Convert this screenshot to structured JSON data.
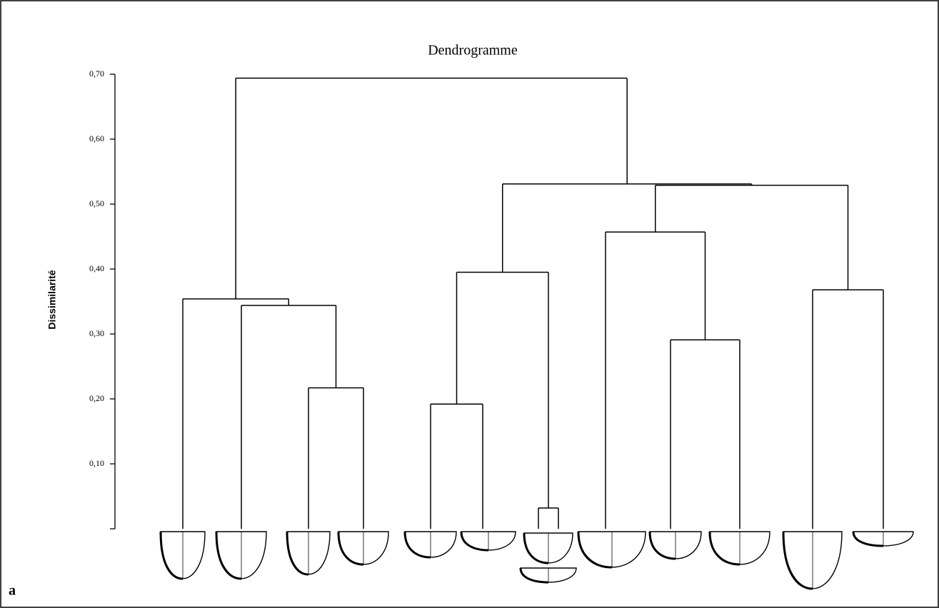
{
  "chart_data": {
    "type": "dendrogram",
    "title": "Dendrogramme",
    "y_label": "Dissimilarité",
    "panel_label": "a",
    "categories": [
      null,
      null,
      null,
      null,
      null,
      null,
      null,
      null,
      null,
      null,
      null,
      null,
      null
    ],
    "linkage": [
      [
        2,
        3,
        0.217
      ],
      [
        1,
        13,
        0.344
      ],
      [
        0,
        14,
        0.354
      ],
      [
        4,
        5,
        0.192
      ],
      [
        6,
        7,
        0.032
      ],
      [
        16,
        17,
        0.395
      ],
      [
        9,
        10,
        0.291
      ],
      [
        8,
        19,
        0.457
      ],
      [
        11,
        12,
        0.368
      ],
      [
        20,
        21,
        0.529
      ],
      [
        18,
        22,
        0.531
      ],
      [
        15,
        23,
        0.694
      ]
    ],
    "ylim": [
      0,
      0.7
    ],
    "yticks": [
      {
        "value": 0.1,
        "label": "0,10"
      },
      {
        "value": 0.2,
        "label": "0,20"
      },
      {
        "value": 0.3,
        "label": "0,30"
      },
      {
        "value": 0.4,
        "label": "0,40"
      },
      {
        "value": 0.5,
        "label": "0,50"
      },
      {
        "value": 0.6,
        "label": "0,60"
      },
      {
        "value": 0.7,
        "label": "0,70"
      }
    ],
    "color": "#000000"
  }
}
